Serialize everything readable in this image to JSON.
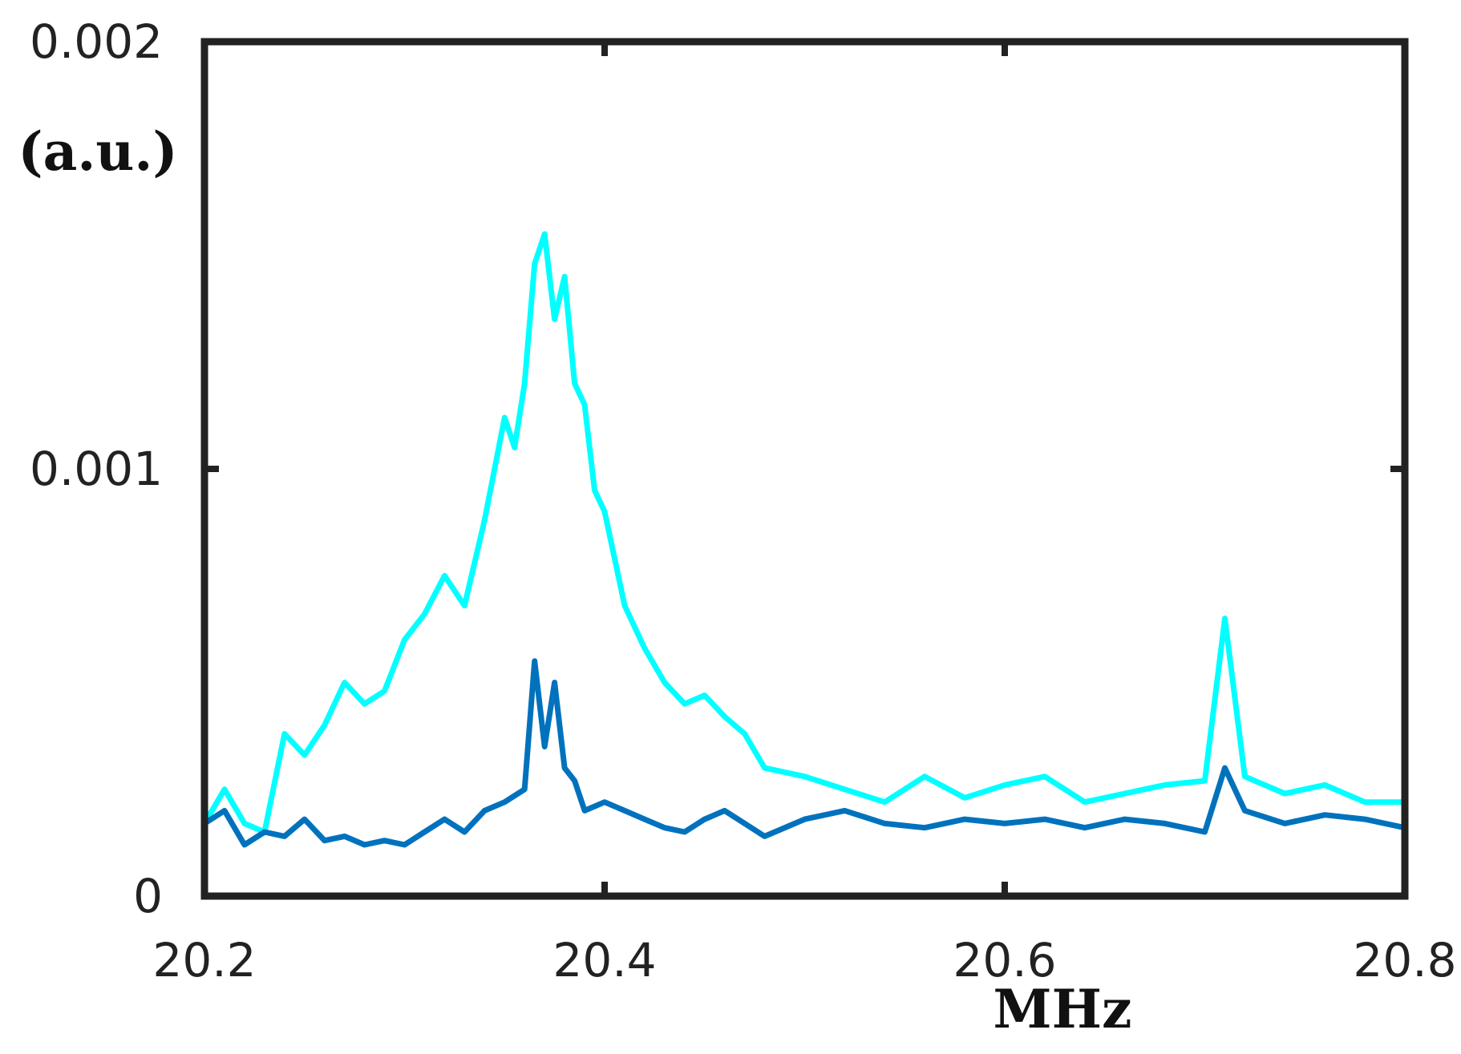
{
  "chart_data": {
    "type": "line",
    "title": "",
    "xlabel": "MHz",
    "ylabel": "(a.u.)",
    "xlim": [
      20.2,
      20.8
    ],
    "ylim": [
      0,
      0.002
    ],
    "xticks": [
      20.2,
      20.4,
      20.6,
      20.8
    ],
    "xtick_labels": [
      "20.2",
      "20.4",
      "20.6",
      "20.8"
    ],
    "yticks": [
      0,
      0.001,
      0.002
    ],
    "ytick_labels": [
      "0",
      "0.001",
      "0.002"
    ],
    "grid": false,
    "series": [
      {
        "color": "#00ffff",
        "x": [
          20.2,
          20.21,
          20.22,
          20.23,
          20.24,
          20.25,
          20.26,
          20.27,
          20.28,
          20.29,
          20.3,
          20.31,
          20.32,
          20.33,
          20.34,
          20.345,
          20.35,
          20.355,
          20.36,
          20.365,
          20.37,
          20.375,
          20.38,
          20.385,
          20.39,
          20.395,
          20.4,
          20.41,
          20.42,
          20.43,
          20.44,
          20.45,
          20.46,
          20.47,
          20.48,
          20.5,
          20.52,
          20.54,
          20.56,
          20.58,
          20.6,
          20.62,
          20.64,
          20.66,
          20.68,
          20.7,
          20.71,
          20.72,
          20.74,
          20.76,
          20.78,
          20.8
        ],
        "y": [
          0.00017,
          0.00025,
          0.00017,
          0.00015,
          0.00038,
          0.00033,
          0.0004,
          0.0005,
          0.00045,
          0.00048,
          0.0006,
          0.00066,
          0.00075,
          0.00068,
          0.00088,
          0.001,
          0.00112,
          0.00105,
          0.0012,
          0.00148,
          0.00155,
          0.00135,
          0.00145,
          0.0012,
          0.00115,
          0.00095,
          0.0009,
          0.00068,
          0.00058,
          0.0005,
          0.00045,
          0.00047,
          0.00042,
          0.00038,
          0.0003,
          0.00028,
          0.00025,
          0.00022,
          0.00028,
          0.00023,
          0.00026,
          0.00028,
          0.00022,
          0.00024,
          0.00026,
          0.00027,
          0.00065,
          0.00028,
          0.00024,
          0.00026,
          0.00022,
          0.00022
        ]
      },
      {
        "color": "#0072bd",
        "x": [
          20.2,
          20.21,
          20.22,
          20.23,
          20.24,
          20.25,
          20.26,
          20.27,
          20.28,
          20.29,
          20.3,
          20.31,
          20.32,
          20.33,
          20.34,
          20.35,
          20.36,
          20.365,
          20.37,
          20.375,
          20.38,
          20.385,
          20.39,
          20.4,
          20.41,
          20.42,
          20.43,
          20.44,
          20.45,
          20.46,
          20.48,
          20.5,
          20.52,
          20.54,
          20.56,
          20.58,
          20.6,
          20.62,
          20.64,
          20.66,
          20.68,
          20.7,
          20.71,
          20.72,
          20.74,
          20.76,
          20.78,
          20.8
        ],
        "y": [
          0.00017,
          0.0002,
          0.00012,
          0.00015,
          0.00014,
          0.00018,
          0.00013,
          0.00014,
          0.00012,
          0.00013,
          0.00012,
          0.00015,
          0.00018,
          0.00015,
          0.0002,
          0.00022,
          0.00025,
          0.00055,
          0.00035,
          0.0005,
          0.0003,
          0.00027,
          0.0002,
          0.00022,
          0.0002,
          0.00018,
          0.00016,
          0.00015,
          0.00018,
          0.0002,
          0.00014,
          0.00018,
          0.0002,
          0.00017,
          0.00016,
          0.00018,
          0.00017,
          0.00018,
          0.00016,
          0.00018,
          0.00017,
          0.00015,
          0.0003,
          0.0002,
          0.00017,
          0.00019,
          0.00018,
          0.00016
        ]
      }
    ]
  }
}
